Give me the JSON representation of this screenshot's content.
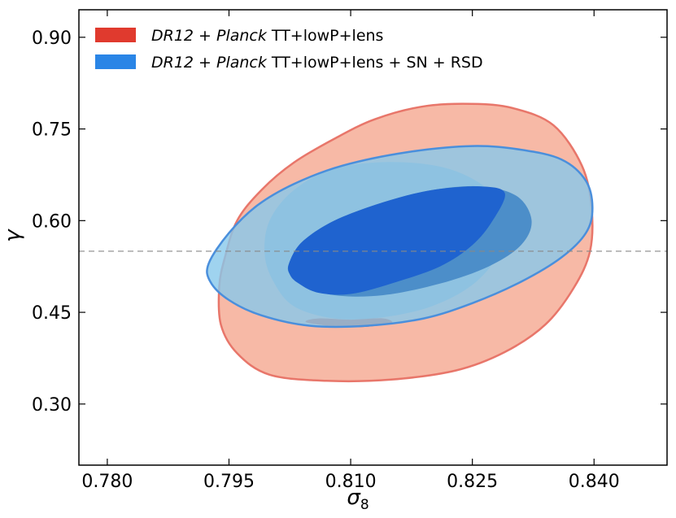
{
  "chart_data": {
    "type": "contour",
    "xlabel": "σ",
    "xlabel_sub": "8",
    "ylabel": "γ",
    "xlim": [
      0.7765,
      0.849
    ],
    "ylim": [
      0.2,
      0.945
    ],
    "xticks": [
      0.78,
      0.795,
      0.81,
      0.825,
      0.84
    ],
    "xtick_labels": [
      "0.780",
      "0.795",
      "0.810",
      "0.825",
      "0.840"
    ],
    "yticks": [
      0.3,
      0.45,
      0.6,
      0.75,
      0.9
    ],
    "ytick_labels": [
      "0.30",
      "0.45",
      "0.60",
      "0.75",
      "0.90"
    ],
    "reference_line": {
      "y": 0.55,
      "style": "dashed",
      "color": "#888888"
    },
    "legend": {
      "position": "top-left",
      "entries": [
        {
          "label_italic_1": "DR12",
          "label_mid_1": " + ",
          "label_italic_2": "Planck",
          "label_rest": " TT+lowP+lens",
          "color": "#e03a2e"
        },
        {
          "label_italic_1": "DR12",
          "label_mid_1": " + ",
          "label_italic_2": "Planck",
          "label_rest": " TT+lowP+lens + SN + RSD",
          "color": "#2a85e6"
        }
      ]
    },
    "series": [
      {
        "name": "DR12 + Planck TT+lowP+lens",
        "contours": [
          {
            "level": "95%",
            "fill": "#f7b9a6",
            "stroke": "#e8766a",
            "points": [
              [
                0.7938,
                0.492
              ],
              [
                0.7945,
                0.54
              ],
              [
                0.796,
                0.6
              ],
              [
                0.799,
                0.65
              ],
              [
                0.803,
                0.695
              ],
              [
                0.808,
                0.734
              ],
              [
                0.813,
                0.766
              ],
              [
                0.819,
                0.787
              ],
              [
                0.825,
                0.791
              ],
              [
                0.83,
                0.784
              ],
              [
                0.835,
                0.756
              ],
              [
                0.8385,
                0.69
              ],
              [
                0.8397,
                0.62
              ],
              [
                0.8395,
                0.55
              ],
              [
                0.8375,
                0.49
              ],
              [
                0.834,
                0.43
              ],
              [
                0.829,
                0.385
              ],
              [
                0.823,
                0.355
              ],
              [
                0.815,
                0.34
              ],
              [
                0.807,
                0.338
              ],
              [
                0.8,
                0.348
              ],
              [
                0.796,
                0.383
              ],
              [
                0.794,
                0.43
              ]
            ]
          },
          {
            "level": "68%",
            "fill": "#a8aab9",
            "stroke": "none",
            "points": [
              [
                0.7994,
                0.545
              ],
              [
                0.8,
                0.6
              ],
              [
                0.803,
                0.65
              ],
              [
                0.808,
                0.685
              ],
              [
                0.815,
                0.696
              ],
              [
                0.822,
                0.685
              ],
              [
                0.827,
                0.65
              ],
              [
                0.829,
                0.6
              ],
              [
                0.8282,
                0.545
              ],
              [
                0.825,
                0.495
              ],
              [
                0.82,
                0.46
              ],
              [
                0.814,
                0.442
              ],
              [
                0.808,
                0.44
              ],
              [
                0.803,
                0.46
              ],
              [
                0.8005,
                0.5
              ]
            ]
          },
          {
            "level": "68%-visible-edge",
            "fill": "#e0452e",
            "stroke": "none",
            "points": [
              [
                0.8045,
                0.434
              ],
              [
                0.808,
                0.427
              ],
              [
                0.8115,
                0.426
              ],
              [
                0.815,
                0.432
              ],
              [
                0.814,
                0.44
              ],
              [
                0.81,
                0.438
              ],
              [
                0.806,
                0.44
              ]
            ]
          }
        ]
      },
      {
        "name": "DR12 + Planck TT+lowP+lens + SN + RSD",
        "contours": [
          {
            "level": "95%",
            "fill": "rgba(135,200,235,0.80)",
            "stroke": "#4a8fdc",
            "points": [
              [
                0.7925,
                0.53
              ],
              [
                0.795,
                0.58
              ],
              [
                0.7985,
                0.625
              ],
              [
                0.803,
                0.66
              ],
              [
                0.809,
                0.69
              ],
              [
                0.817,
                0.712
              ],
              [
                0.825,
                0.722
              ],
              [
                0.831,
                0.716
              ],
              [
                0.836,
                0.7
              ],
              [
                0.839,
                0.665
              ],
              [
                0.8398,
                0.62
              ],
              [
                0.839,
                0.58
              ],
              [
                0.836,
                0.54
              ],
              [
                0.831,
                0.5
              ],
              [
                0.825,
                0.465
              ],
              [
                0.819,
                0.44
              ],
              [
                0.812,
                0.428
              ],
              [
                0.805,
                0.428
              ],
              [
                0.799,
                0.445
              ],
              [
                0.795,
                0.47
              ],
              [
                0.7927,
                0.5
              ]
            ]
          },
          {
            "level": "68%",
            "fill": "#4c8ec9",
            "stroke": "none",
            "points": [
              [
                0.8024,
                0.53
              ],
              [
                0.804,
                0.565
              ],
              [
                0.808,
                0.6
              ],
              [
                0.814,
                0.63
              ],
              [
                0.82,
                0.65
              ],
              [
                0.826,
                0.656
              ],
              [
                0.8305,
                0.64
              ],
              [
                0.8323,
                0.6
              ],
              [
                0.831,
                0.56
              ],
              [
                0.827,
                0.525
              ],
              [
                0.821,
                0.497
              ],
              [
                0.814,
                0.478
              ],
              [
                0.808,
                0.478
              ],
              [
                0.804,
                0.495
              ],
              [
                0.8025,
                0.512
              ]
            ]
          },
          {
            "level": "68%-core",
            "fill": "#1f63cf",
            "stroke": "none",
            "points": [
              [
                0.8024,
                0.53
              ],
              [
                0.804,
                0.565
              ],
              [
                0.808,
                0.6
              ],
              [
                0.814,
                0.63
              ],
              [
                0.82,
                0.65
              ],
              [
                0.826,
                0.656
              ],
              [
                0.829,
                0.645
              ],
              [
                0.8275,
                0.6
              ],
              [
                0.825,
                0.56
              ],
              [
                0.821,
                0.525
              ],
              [
                0.815,
                0.497
              ],
              [
                0.81,
                0.48
              ],
              [
                0.806,
                0.482
              ],
              [
                0.8035,
                0.498
              ],
              [
                0.8025,
                0.512
              ]
            ]
          }
        ]
      }
    ]
  }
}
